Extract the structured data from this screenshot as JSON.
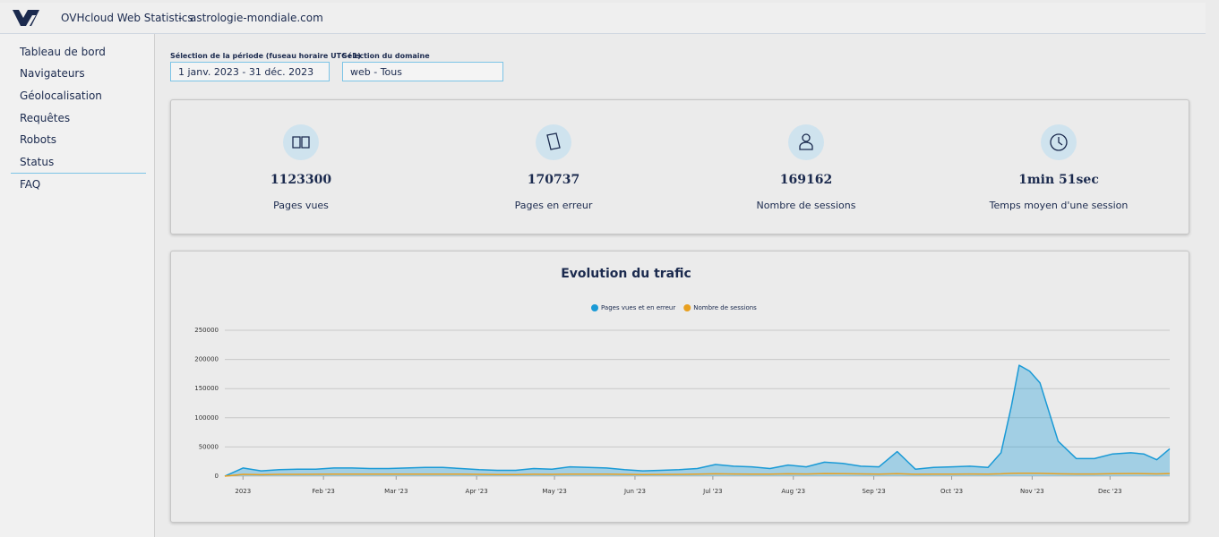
{
  "header": {
    "brand": "OVHcloud Web Statistics",
    "separator": "-",
    "site": "astrologie-mondiale.com"
  },
  "sidebar": {
    "items": [
      "Tableau de bord",
      "Navigateurs",
      "Géolocalisation",
      "Requêtes",
      "Robots",
      "Status"
    ],
    "faq": "FAQ"
  },
  "filters": [
    {
      "label": "Sélection de la période (fuseau horaire UTC+1)",
      "value": "1 janv. 2023 - 31 déc. 2023"
    },
    {
      "label": "Sélection du domaine",
      "value": "web - Tous"
    }
  ],
  "stats": [
    {
      "value": 1123300,
      "label": "Pages vues"
    },
    {
      "value": 170737,
      "label": "Pages en erreur"
    },
    {
      "value": 169162,
      "label": "Nombre de sessions"
    },
    {
      "value": "1min 51sec",
      "label": "Temps moyen d'une session"
    }
  ],
  "chart_data": {
    "type": "area",
    "title": "Evolution du trafic",
    "x": [
      -6,
      1,
      8,
      15,
      22,
      29,
      36,
      43,
      50,
      57,
      64,
      71,
      78,
      85,
      92,
      99,
      106,
      113,
      120,
      127,
      134,
      141,
      148,
      155,
      162,
      169,
      176,
      183,
      190,
      197,
      204,
      211,
      218,
      225,
      232,
      239,
      246,
      253,
      260,
      267,
      274,
      281,
      288,
      293,
      297,
      300,
      304,
      308,
      315,
      322,
      329,
      336,
      343,
      348,
      353,
      358
    ],
    "series": [
      {
        "name": "Pages vues et en erreur",
        "color": "#1a9ad6",
        "values": [
          0,
          14000,
          9000,
          11000,
          12000,
          12000,
          14000,
          14000,
          13000,
          13000,
          14000,
          15000,
          15000,
          13000,
          11000,
          10000,
          10000,
          13000,
          12000,
          16000,
          15000,
          14000,
          11000,
          9000,
          10000,
          11000,
          13000,
          20000,
          17000,
          16000,
          13000,
          19000,
          16000,
          24000,
          22000,
          17000,
          16000,
          42000,
          12000,
          15000,
          16000,
          17000,
          15000,
          40000,
          120000,
          190000,
          180000,
          160000,
          60000,
          30000,
          30000,
          38000,
          40000,
          38000,
          28000,
          47000
        ]
      },
      {
        "name": "Nombre de sessions",
        "color": "#e8a020",
        "values": [
          0,
          3000,
          2500,
          3000,
          3000,
          3200,
          3500,
          3500,
          3300,
          3300,
          3500,
          3600,
          3600,
          3300,
          3000,
          2800,
          2800,
          3200,
          3100,
          3600,
          3500,
          3400,
          3000,
          2700,
          2900,
          3000,
          3300,
          4000,
          3700,
          3600,
          3300,
          4000,
          3700,
          4500,
          4300,
          3800,
          3600,
          4200,
          3200,
          3500,
          3600,
          3700,
          3500,
          4000,
          4800,
          5000,
          4900,
          4700,
          4000,
          3700,
          3700,
          4200,
          4400,
          4300,
          3900,
          4500
        ]
      }
    ],
    "xlim": [
      -6,
      358
    ],
    "xticks": [
      {
        "value": 1,
        "label": "2023"
      },
      {
        "value": 32,
        "label": "Feb '23"
      },
      {
        "value": 60,
        "label": "Mar '23"
      },
      {
        "value": 91,
        "label": "Apr '23"
      },
      {
        "value": 121,
        "label": "May '23"
      },
      {
        "value": 152,
        "label": "Jun '23"
      },
      {
        "value": 182,
        "label": "Jul '23"
      },
      {
        "value": 213,
        "label": "Aug '23"
      },
      {
        "value": 244,
        "label": "Sep '23"
      },
      {
        "value": 274,
        "label": "Oct '23"
      },
      {
        "value": 305,
        "label": "Nov '23"
      },
      {
        "value": 335,
        "label": "Dec '23"
      }
    ],
    "ylim": [
      0,
      250000
    ],
    "yticks": [
      0,
      50000,
      100000,
      150000,
      200000,
      250000
    ],
    "grid": true,
    "legend": "top"
  }
}
